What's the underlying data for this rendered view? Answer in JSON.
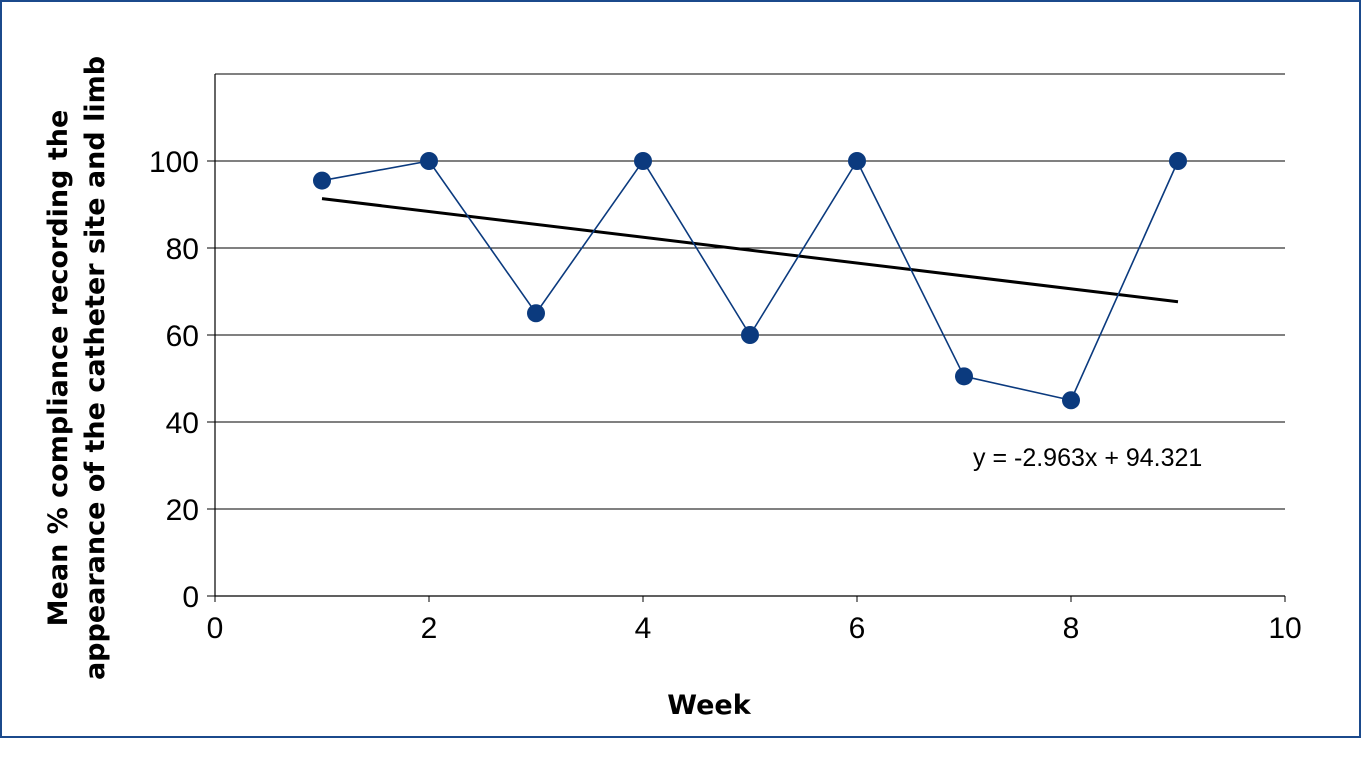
{
  "chart_data": {
    "type": "scatter",
    "title": "",
    "xlabel": "Week",
    "ylabel_lines": [
      "Mean % compliance recording the",
      "appearance of the catheter site and limb"
    ],
    "xlim": [
      0,
      10
    ],
    "ylim": [
      0,
      120
    ],
    "x_ticks": [
      "0",
      "2",
      "4",
      "6",
      "8",
      "10"
    ],
    "y_ticks": [
      "0",
      "20",
      "40",
      "60",
      "80",
      "100"
    ],
    "grid": "horizontal",
    "series": [
      {
        "color": "#0b3a7e",
        "marker": "circle",
        "lines": "straight",
        "points": [
          {
            "x": 1,
            "y": 95.5
          },
          {
            "x": 2,
            "y": 100
          },
          {
            "x": 3,
            "y": 65
          },
          {
            "x": 4,
            "y": 100
          },
          {
            "x": 5,
            "y": 60
          },
          {
            "x": 6,
            "y": 100
          },
          {
            "x": 7,
            "y": 50.5
          },
          {
            "x": 8,
            "y": 45
          },
          {
            "x": 9,
            "y": 100
          }
        ]
      }
    ],
    "trendline": {
      "type": "linear",
      "slope": -2.963,
      "intercept": 94.321,
      "x_range": [
        1,
        9
      ],
      "equation_label": "y = -2.963x + 94.321",
      "color": "#000000"
    }
  }
}
